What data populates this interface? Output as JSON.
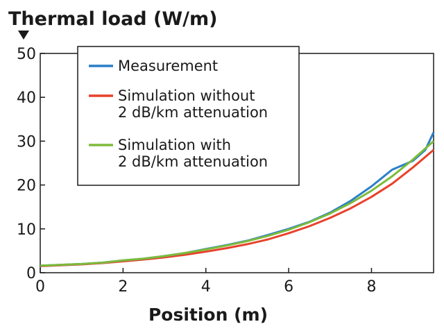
{
  "chart_data": {
    "type": "line",
    "title": "",
    "ylabel": "Thermal load (W/m)",
    "xlabel": "Position (m)",
    "xlim": [
      0,
      9.5
    ],
    "ylim": [
      0,
      50
    ],
    "xticks": [
      0,
      2,
      4,
      6,
      8
    ],
    "yticks": [
      0,
      10,
      20,
      30,
      40,
      50
    ],
    "grid": false,
    "legend_position": "top-left",
    "colors": {
      "measurement": "#2a7fc9",
      "sim_without": "#e8412c",
      "sim_with": "#7dbb3b"
    },
    "series": [
      {
        "name": "Measurement",
        "color": "#2a7fc9",
        "x": [
          0,
          0.5,
          1,
          1.5,
          2,
          2.5,
          3,
          3.5,
          4,
          4.5,
          5,
          5.5,
          6,
          6.5,
          7,
          7.5,
          8,
          8.5,
          9,
          9.3,
          9.5
        ],
        "y": [
          1.6,
          1.8,
          2.0,
          2.3,
          2.8,
          3.2,
          3.8,
          4.5,
          5.4,
          6.3,
          7.3,
          8.6,
          10.0,
          11.6,
          13.7,
          16.4,
          19.7,
          23.5,
          25.5,
          28.0,
          32.0
        ]
      },
      {
        "name": "Simulation without\n2 dB/km attenuation",
        "color": "#e8412c",
        "x": [
          0,
          0.5,
          1,
          1.5,
          2,
          2.5,
          3,
          3.5,
          4,
          4.5,
          5,
          5.5,
          6,
          6.5,
          7,
          7.5,
          8,
          8.5,
          9,
          9.5
        ],
        "y": [
          1.5,
          1.7,
          1.9,
          2.2,
          2.6,
          3.0,
          3.5,
          4.1,
          4.8,
          5.6,
          6.5,
          7.6,
          9.0,
          10.6,
          12.5,
          14.7,
          17.3,
          20.3,
          24.0,
          28.0
        ]
      },
      {
        "name": "Simulation with\n2 dB/km attenuation",
        "color": "#7dbb3b",
        "x": [
          0,
          0.5,
          1,
          1.5,
          2,
          2.5,
          3,
          3.5,
          4,
          4.5,
          5,
          5.5,
          6,
          6.5,
          7,
          7.5,
          8,
          8.5,
          9,
          9.5
        ],
        "y": [
          1.6,
          1.8,
          2.0,
          2.3,
          2.8,
          3.2,
          3.8,
          4.5,
          5.3,
          6.2,
          7.2,
          8.4,
          9.8,
          11.5,
          13.5,
          15.9,
          18.7,
          22.0,
          25.8,
          30.0
        ]
      }
    ]
  }
}
